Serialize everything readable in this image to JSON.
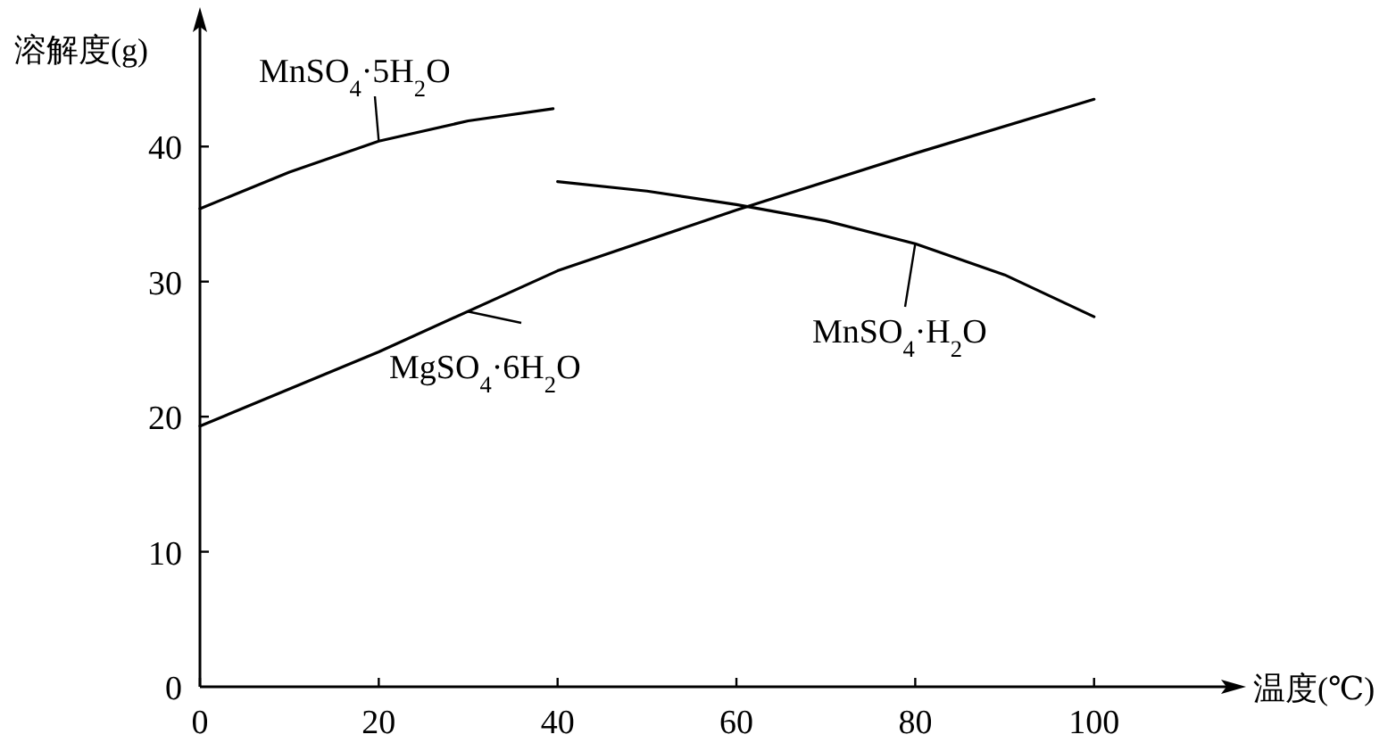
{
  "chart_data": {
    "type": "line",
    "xlabel": "温度(℃)",
    "ylabel": "溶解度(g)",
    "xlim": [
      0,
      115
    ],
    "ylim": [
      0,
      49
    ],
    "xticks": [
      0,
      20,
      40,
      60,
      80,
      100
    ],
    "yticks": [
      0,
      10,
      20,
      30,
      40
    ],
    "grid": false,
    "marker": "none",
    "legend": "center",
    "line_style": "solid",
    "series": [
      {
        "name": "MnSO$_{4}$·5H$_{2}$O",
        "color": "#000000",
        "x": [
          0,
          10,
          20,
          30,
          39.5
        ],
        "values": [
          35.4,
          38.1,
          40.4,
          41.9,
          42.8
        ]
      },
      {
        "name": "MnSO$_{4}$·H$_{2}$O",
        "color": "#000000",
        "x": [
          40,
          50,
          60,
          70,
          80,
          90,
          100
        ],
        "values": [
          37.4,
          36.7,
          35.7,
          34.5,
          32.8,
          30.5,
          27.4
        ]
      },
      {
        "name": "MgSO$_{4}$·6H$_{2}$O",
        "color": "#000000",
        "x": [
          0,
          20,
          40,
          60,
          80,
          100
        ],
        "values": [
          19.3,
          24.8,
          30.8,
          35.3,
          39.5,
          43.5
        ]
      }
    ]
  }
}
